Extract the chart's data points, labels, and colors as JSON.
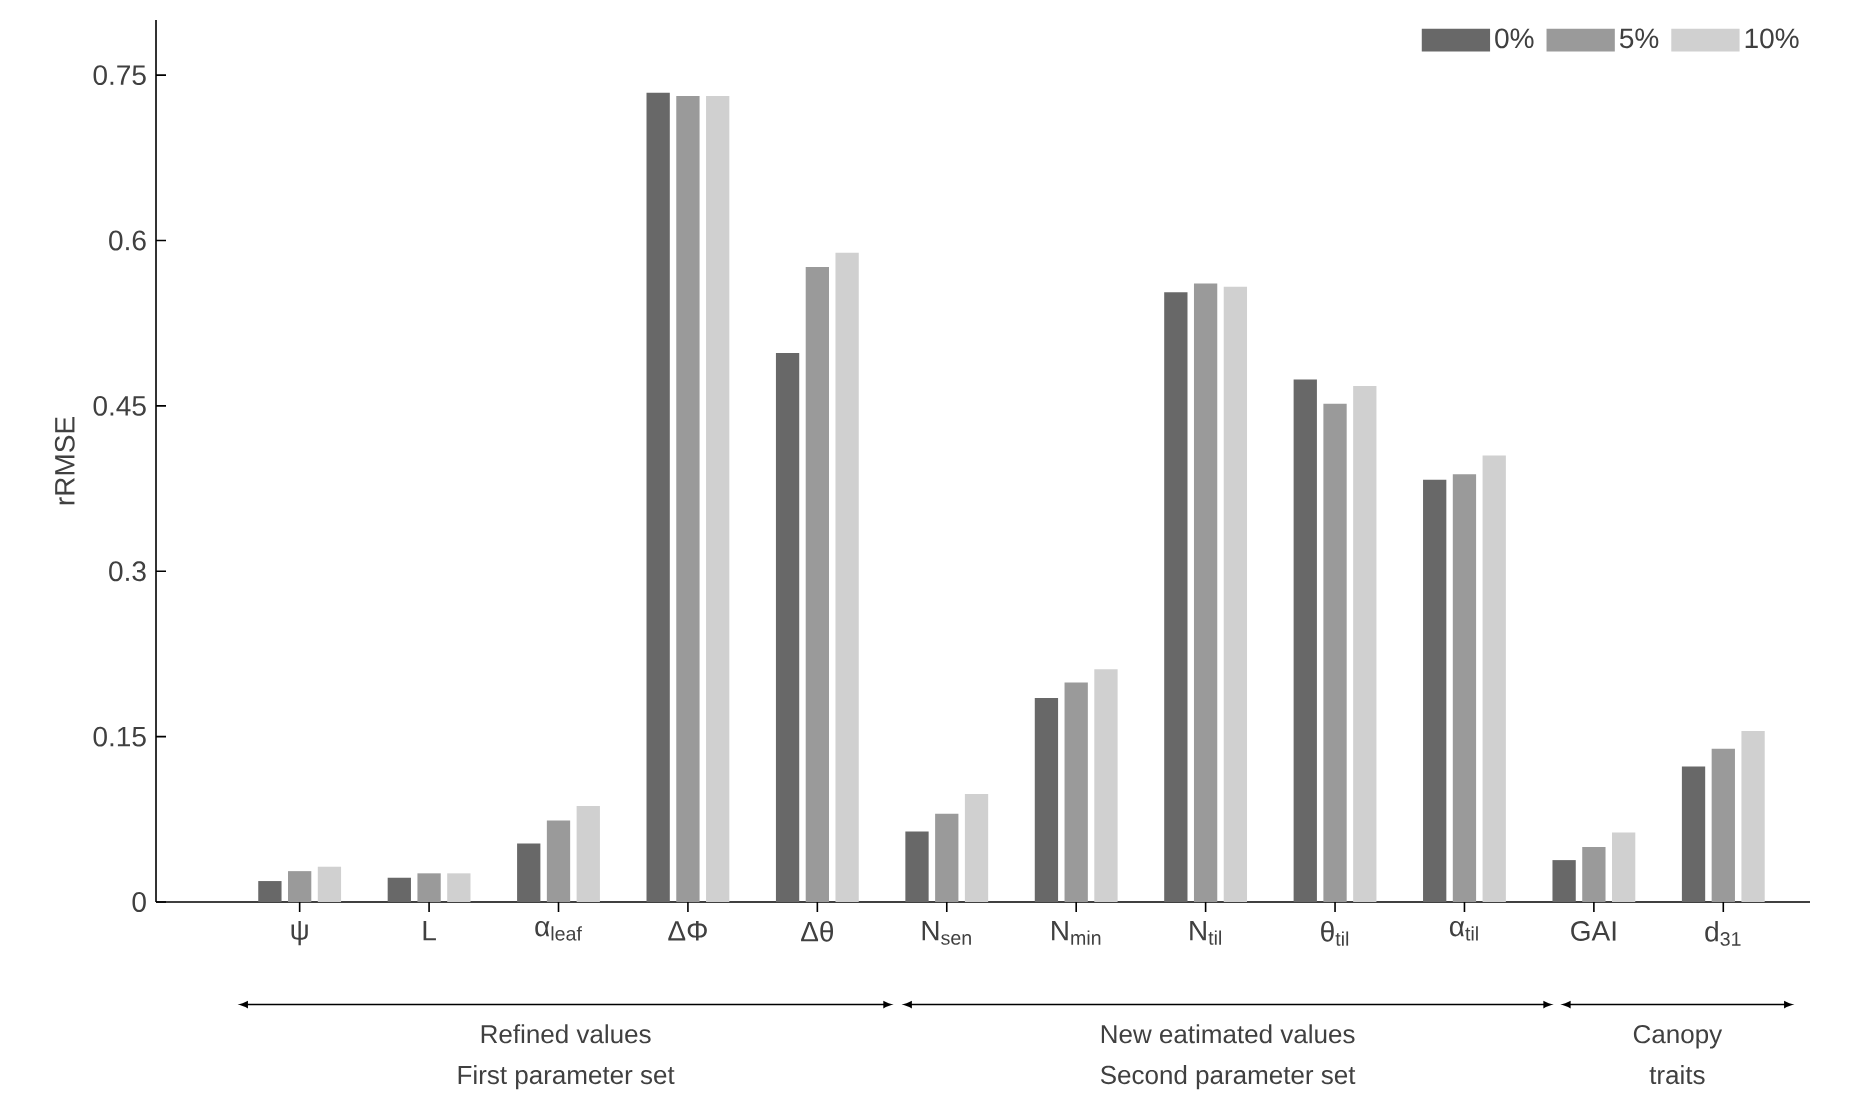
{
  "chart_data": {
    "type": "bar",
    "ylabel": "rRMSE",
    "categories": [
      "ψ",
      "L",
      "α$_{leaf}$",
      "ΔΦ",
      "Δθ",
      "N$_{sen}$",
      "N$_{min}$",
      "N$_{til}$",
      "θ$_{til}$",
      "α$_{til}$",
      "GAI",
      "d$_{31}$"
    ],
    "series": [
      {
        "name": "0%",
        "color": "#686868",
        "values": [
          0.019,
          0.022,
          0.053,
          0.734,
          0.498,
          0.064,
          0.185,
          0.553,
          0.474,
          0.383,
          0.038,
          0.123
        ]
      },
      {
        "name": "5%",
        "color": "#9a9a9a",
        "values": [
          0.028,
          0.026,
          0.074,
          0.731,
          0.576,
          0.08,
          0.199,
          0.561,
          0.452,
          0.388,
          0.05,
          0.139
        ]
      },
      {
        "name": "10%",
        "color": "#d0d0d0",
        "values": [
          0.032,
          0.026,
          0.087,
          0.731,
          0.589,
          0.098,
          0.211,
          0.558,
          0.468,
          0.405,
          0.063,
          0.155
        ]
      }
    ],
    "ylim": [
      0,
      0.8
    ],
    "yticks": [
      0,
      0.15,
      0.3,
      0.45,
      0.6,
      0.75
    ],
    "grid": false,
    "legend": "top right",
    "annotations": [
      "Refined values",
      "First parameter set",
      "New eatimated values",
      "Second parameter set",
      "Canopy",
      "traits"
    ]
  }
}
